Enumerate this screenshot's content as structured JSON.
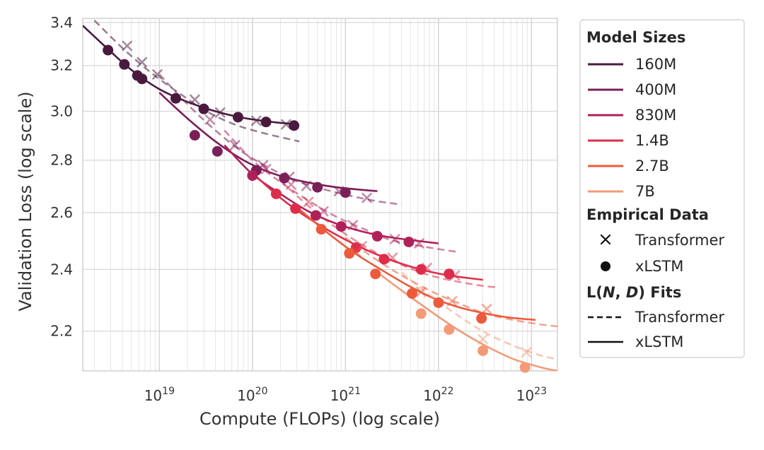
{
  "chart_data": {
    "type": "line",
    "xlabel": "Compute (FLOPs) (log scale)",
    "ylabel": "Validation Loss (log scale)",
    "xscale": "log",
    "yscale": "log",
    "xlim": [
      1.5e+18,
      1.9e+23
    ],
    "ylim": [
      2.08,
      3.42
    ],
    "grid": true,
    "x_tick_labels": [
      {
        "exp": 19,
        "base": "10",
        "sup": "19",
        "value": 1e+19
      },
      {
        "exp": 20,
        "base": "10",
        "sup": "20",
        "value": 1e+20
      },
      {
        "exp": 21,
        "base": "10",
        "sup": "21",
        "value": 1e+21
      },
      {
        "exp": 22,
        "base": "10",
        "sup": "22",
        "value": 1e+22
      },
      {
        "exp": 23,
        "base": "10",
        "sup": "23",
        "value": 1e+23
      }
    ],
    "y_tick_labels": [
      {
        "label": "2.2",
        "value": 2.2
      },
      {
        "label": "2.4",
        "value": 2.4
      },
      {
        "label": "2.6",
        "value": 2.6
      },
      {
        "label": "2.8",
        "value": 2.8
      },
      {
        "label": "3.0",
        "value": 3.0
      },
      {
        "label": "3.2",
        "value": 3.2
      },
      {
        "label": "3.4",
        "value": 3.4
      }
    ],
    "legend": {
      "placement": "right, outside",
      "model_sizes_title": "Model Sizes",
      "empirical_title": "Empirical Data",
      "fits_title": "L(N, D) Fits",
      "fits_title_parts": {
        "L": "L",
        "open": "(",
        "N": "N",
        "comma": ", ",
        "D": "D",
        "close": ")",
        "rest": " Fits"
      },
      "empirical_items": [
        {
          "marker": "cross",
          "label": "Transformer"
        },
        {
          "marker": "circle",
          "label": "xLSTM"
        }
      ],
      "fit_items": [
        {
          "style": "dashed",
          "label": "Transformer"
        },
        {
          "style": "solid",
          "label": "xLSTM"
        }
      ]
    },
    "series": [
      {
        "name": "160M",
        "color": "#4a1a3e",
        "xlstm_points": [
          [
            2.8e+18,
            3.27
          ],
          [
            4.2e+18,
            3.205
          ],
          [
            5.8e+18,
            3.155
          ],
          [
            6.5e+18,
            3.14
          ],
          [
            1.5e+19,
            3.055
          ],
          [
            3e+19,
            3.01
          ],
          [
            7e+19,
            2.975
          ],
          [
            1.4e+20,
            2.955
          ],
          [
            2.8e+20,
            2.94
          ]
        ],
        "transformer_points": [
          [
            4.5e+18,
            3.29
          ],
          [
            6.5e+18,
            3.215
          ],
          [
            9.5e+18,
            3.16
          ],
          [
            2.4e+19,
            3.05
          ],
          [
            4.5e+19,
            2.995
          ],
          [
            1.1e+20,
            2.96
          ],
          [
            2.3e+20,
            2.945
          ]
        ],
        "xlstm_fit": [
          [
            1.5e+18,
            3.385
          ],
          [
            2.8e+18,
            3.275
          ],
          [
            5e+18,
            3.18
          ],
          [
            1e+19,
            3.095
          ],
          [
            2e+19,
            3.04
          ],
          [
            4e+19,
            3.0
          ],
          [
            8e+19,
            2.972
          ],
          [
            1.6e+20,
            2.955
          ],
          [
            3e+20,
            2.945
          ]
        ],
        "transformer_fit": [
          [
            2e+18,
            3.41
          ],
          [
            4e+18,
            3.28
          ],
          [
            8e+18,
            3.17
          ],
          [
            1.6e+19,
            3.08
          ],
          [
            3.2e+19,
            3.0
          ],
          [
            6.4e+19,
            2.945
          ],
          [
            1.28e+20,
            2.91
          ],
          [
            3.2e+20,
            2.875
          ]
        ]
      },
      {
        "name": "400M",
        "color": "#7b1f58",
        "xlstm_points": [
          [
            2.4e+19,
            2.9
          ],
          [
            4.2e+19,
            2.835
          ],
          [
            1.1e+20,
            2.76
          ],
          [
            2.2e+20,
            2.73
          ],
          [
            5e+20,
            2.695
          ],
          [
            1e+21,
            2.675
          ]
        ],
        "transformer_points": [
          [
            3.5e+19,
            2.965
          ],
          [
            6.5e+19,
            2.86
          ],
          [
            1.3e+20,
            2.78
          ],
          [
            2.5e+20,
            2.735
          ],
          [
            3.8e+20,
            2.7
          ],
          [
            8.5e+20,
            2.68
          ],
          [
            1.7e+21,
            2.655
          ]
        ],
        "xlstm_fit": [
          [
            1e+19,
            3.08
          ],
          [
            2e+19,
            2.97
          ],
          [
            4e+19,
            2.875
          ],
          [
            8e+19,
            2.8
          ],
          [
            1.6e+20,
            2.75
          ],
          [
            3.2e+20,
            2.72
          ],
          [
            8e+20,
            2.695
          ],
          [
            2.2e+21,
            2.68
          ]
        ],
        "transformer_fit": [
          [
            1e+19,
            3.16
          ],
          [
            2e+19,
            3.03
          ],
          [
            4e+19,
            2.92
          ],
          [
            8e+19,
            2.83
          ],
          [
            1.6e+20,
            2.765
          ],
          [
            3.2e+20,
            2.715
          ],
          [
            8e+20,
            2.675
          ],
          [
            2e+21,
            2.645
          ],
          [
            4e+21,
            2.63
          ]
        ]
      },
      {
        "name": "830M",
        "color": "#b0215a",
        "xlstm_points": [
          [
            1e+20,
            2.74
          ],
          [
            4.8e+20,
            2.59
          ],
          [
            9e+20,
            2.55
          ],
          [
            2.2e+21,
            2.515
          ],
          [
            4.8e+21,
            2.495
          ]
        ],
        "transformer_points": [
          [
            1.4e+20,
            2.765
          ],
          [
            2.6e+20,
            2.705
          ],
          [
            5.8e+20,
            2.605
          ],
          [
            1.2e+21,
            2.555
          ],
          [
            3.4e+21,
            2.505
          ],
          [
            6.2e+21,
            2.49
          ]
        ],
        "xlstm_fit": [
          [
            5e+19,
            2.86
          ],
          [
            1e+20,
            2.745
          ],
          [
            2e+20,
            2.67
          ],
          [
            4e+20,
            2.605
          ],
          [
            8e+20,
            2.56
          ],
          [
            1.6e+21,
            2.53
          ],
          [
            3.2e+21,
            2.51
          ],
          [
            1e+22,
            2.49
          ]
        ],
        "transformer_fit": [
          [
            5e+19,
            2.92
          ],
          [
            1e+20,
            2.8
          ],
          [
            2e+20,
            2.715
          ],
          [
            4e+20,
            2.645
          ],
          [
            8e+20,
            2.585
          ],
          [
            1.6e+21,
            2.54
          ],
          [
            3.2e+21,
            2.5
          ],
          [
            8e+21,
            2.475
          ],
          [
            1.6e+22,
            2.46
          ]
        ]
      },
      {
        "name": "1.4B",
        "color": "#dc2e4a",
        "xlstm_points": [
          [
            1.8e+20,
            2.67
          ],
          [
            2.9e+20,
            2.615
          ],
          [
            1.3e+21,
            2.475
          ],
          [
            2.6e+21,
            2.435
          ],
          [
            6.5e+21,
            2.4
          ],
          [
            1.3e+22,
            2.385
          ]
        ],
        "transformer_points": [
          [
            4e+20,
            2.64
          ],
          [
            1.5e+21,
            2.48
          ],
          [
            3.2e+21,
            2.44
          ],
          [
            7.5e+21,
            2.405
          ],
          [
            1.5e+22,
            2.38
          ]
        ],
        "xlstm_fit": [
          [
            1e+20,
            2.75
          ],
          [
            2e+20,
            2.655
          ],
          [
            4e+20,
            2.58
          ],
          [
            8e+20,
            2.52
          ],
          [
            1.6e+21,
            2.47
          ],
          [
            3.2e+21,
            2.43
          ],
          [
            6.4e+21,
            2.4
          ],
          [
            1.28e+22,
            2.38
          ],
          [
            3e+22,
            2.365
          ]
        ],
        "transformer_fit": [
          [
            2e+20,
            2.72
          ],
          [
            4e+20,
            2.625
          ],
          [
            8e+20,
            2.545
          ],
          [
            1.6e+21,
            2.48
          ],
          [
            3.2e+21,
            2.43
          ],
          [
            6.4e+21,
            2.39
          ],
          [
            1.28e+22,
            2.365
          ],
          [
            3e+22,
            2.345
          ],
          [
            4.5e+22,
            2.34
          ]
        ]
      },
      {
        "name": "2.7B",
        "color": "#ec5a3c",
        "xlstm_points": [
          [
            5.5e+20,
            2.54
          ],
          [
            1.1e+21,
            2.455
          ],
          [
            2.1e+21,
            2.385
          ],
          [
            5.2e+21,
            2.32
          ],
          [
            1e+22,
            2.29
          ],
          [
            2.9e+22,
            2.24
          ]
        ],
        "transformer_points": [
          [
            1.3e+21,
            2.46
          ],
          [
            6.5e+21,
            2.325
          ],
          [
            1.4e+22,
            2.295
          ],
          [
            3.3e+22,
            2.27
          ]
        ],
        "xlstm_fit": [
          [
            3e+20,
            2.62
          ],
          [
            6e+20,
            2.535
          ],
          [
            1.2e+21,
            2.46
          ],
          [
            2.4e+21,
            2.4
          ],
          [
            4.8e+21,
            2.345
          ],
          [
            9.6e+21,
            2.3
          ],
          [
            1.92e+22,
            2.27
          ],
          [
            5e+22,
            2.245
          ],
          [
            1.1e+23,
            2.235
          ]
        ],
        "transformer_fit": [
          [
            1e+21,
            2.51
          ],
          [
            2e+21,
            2.44
          ],
          [
            4e+21,
            2.38
          ],
          [
            8e+21,
            2.33
          ],
          [
            1.6e+22,
            2.29
          ],
          [
            3.2e+22,
            2.255
          ],
          [
            6.4e+22,
            2.235
          ],
          [
            1.3e+23,
            2.22
          ],
          [
            1.9e+23,
            2.215
          ]
        ]
      },
      {
        "name": "7B",
        "color": "#f39b78",
        "xlstm_points": [
          [
            6.5e+21,
            2.255
          ],
          [
            1.3e+22,
            2.205
          ],
          [
            3e+22,
            2.14
          ],
          [
            8.5e+22,
            2.09
          ]
        ],
        "transformer_points": [
          [
            3e+22,
            2.175
          ],
          [
            8.8e+22,
            2.135
          ]
        ],
        "xlstm_fit": [
          [
            2e+21,
            2.4
          ],
          [
            4e+21,
            2.33
          ],
          [
            8e+21,
            2.265
          ],
          [
            1.6e+22,
            2.205
          ],
          [
            3.2e+22,
            2.155
          ],
          [
            6.4e+22,
            2.115
          ],
          [
            1.28e+23,
            2.09
          ],
          [
            1.9e+23,
            2.08
          ]
        ],
        "transformer_fit": [
          [
            4e+21,
            2.39
          ],
          [
            8e+21,
            2.315
          ],
          [
            1.6e+22,
            2.25
          ],
          [
            3.2e+22,
            2.195
          ],
          [
            6.4e+22,
            2.155
          ],
          [
            1.28e+23,
            2.125
          ],
          [
            1.9e+23,
            2.115
          ]
        ]
      }
    ]
  }
}
